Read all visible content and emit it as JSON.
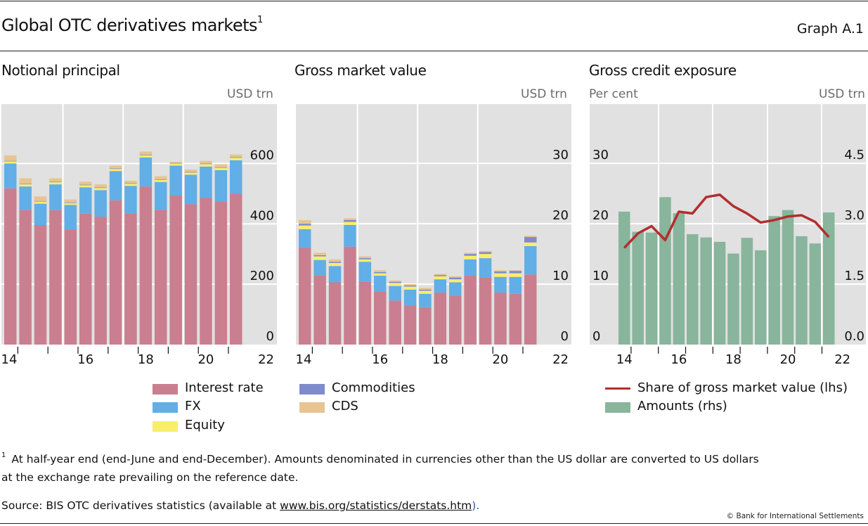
{
  "header": {
    "title": "Global OTC derivatives markets",
    "title_footnote_mark": "1",
    "graph_id": "Graph A.1"
  },
  "colors": {
    "interest_rate": "#c97f8f",
    "fx": "#62aee6",
    "equity": "#f8ee6a",
    "commodities": "#7f8bcc",
    "cds": "#e8c493",
    "amounts": "#88b59c",
    "share_line": "#b22e2e",
    "plot_bg": "#e1e1e1"
  },
  "chart_data": [
    {
      "type": "bar",
      "stacked": true,
      "title": "Notional principal",
      "ylabel": "USD trn",
      "y_axis_side": "right",
      "ylim": [
        0,
        800
      ],
      "yticks": [
        0,
        200,
        400,
        600
      ],
      "xtick_labels": [
        "14",
        "16",
        "18",
        "20",
        "22"
      ],
      "categories": [
        "H1 2014",
        "H2 2014",
        "H1 2015",
        "H2 2015",
        "H1 2016",
        "H2 2016",
        "H1 2017",
        "H2 2017",
        "H1 2018",
        "H2 2018",
        "H1 2019",
        "H2 2019",
        "H1 2020",
        "H2 2020",
        "H1 2021",
        "H2 2021"
      ],
      "series": [
        {
          "name": "Interest rate",
          "values": [
            518,
            446,
            395,
            446,
            382,
            434,
            424,
            478,
            435,
            524,
            447,
            494,
            465,
            486,
            473,
            500
          ]
        },
        {
          "name": "FX",
          "values": [
            82,
            78,
            72,
            85,
            81,
            87,
            88,
            97,
            91,
            96,
            92,
            99,
            98,
            104,
            105,
            111
          ]
        },
        {
          "name": "Equity",
          "values": [
            7,
            7,
            7,
            7,
            6,
            7,
            7,
            7,
            7,
            7,
            7,
            7,
            7,
            8,
            8,
            8
          ]
        },
        {
          "name": "Commodities",
          "values": [
            2,
            2,
            2,
            2,
            2,
            2,
            2,
            2,
            2,
            2,
            2,
            2,
            2,
            2,
            2,
            2
          ]
        },
        {
          "name": "CDS",
          "values": [
            18,
            18,
            15,
            11,
            10,
            10,
            10,
            9,
            8,
            11,
            10,
            4,
            8,
            9,
            10,
            9
          ]
        }
      ],
      "grid": true
    },
    {
      "type": "bar",
      "stacked": true,
      "title": "Gross market value",
      "ylabel": "USD trn",
      "y_axis_side": "right",
      "ylim": [
        0,
        40
      ],
      "yticks": [
        0,
        10,
        20,
        30
      ],
      "xtick_labels": [
        "14",
        "16",
        "18",
        "20",
        "22"
      ],
      "categories": [
        "H1 2014",
        "H2 2014",
        "H1 2015",
        "H2 2015",
        "H1 2016",
        "H2 2016",
        "H1 2017",
        "H2 2017",
        "H1 2018",
        "H2 2018",
        "H1 2019",
        "H2 2019",
        "H1 2020",
        "H2 2020",
        "H1 2021",
        "H2 2021"
      ],
      "series": [
        {
          "name": "Interest rate",
          "values": [
            16.0,
            11.5,
            10.3,
            16.2,
            10.4,
            8.8,
            7.3,
            6.4,
            6.2,
            8.6,
            8.1,
            11.5,
            11.1,
            8.6,
            8.4,
            11.6
          ]
        },
        {
          "name": "FX",
          "values": [
            3.1,
            2.5,
            2.7,
            3.6,
            3.3,
            2.6,
            2.4,
            2.7,
            2.2,
            2.2,
            2.2,
            2.6,
            3.2,
            2.6,
            2.8,
            4.7
          ]
        },
        {
          "name": "Equity",
          "values": [
            0.6,
            0.6,
            0.5,
            0.5,
            0.4,
            0.4,
            0.5,
            0.5,
            0.5,
            0.5,
            0.5,
            0.6,
            0.7,
            0.6,
            0.6,
            0.6
          ]
        },
        {
          "name": "Commodities",
          "values": [
            0.3,
            0.2,
            0.2,
            0.3,
            0.2,
            0.2,
            0.2,
            0.2,
            0.2,
            0.2,
            0.3,
            0.3,
            0.3,
            0.3,
            0.4,
            0.9
          ]
        },
        {
          "name": "CDS",
          "values": [
            0.6,
            0.4,
            0.4,
            0.3,
            0.3,
            0.3,
            0.2,
            0.2,
            0.3,
            0.2,
            0.2,
            0.2,
            0.2,
            0.2,
            0.1,
            0.2
          ]
        }
      ],
      "grid": true
    },
    {
      "type": "bar+line",
      "title": "Gross credit exposure",
      "ylabel_left": "Per cent",
      "ylabel_right": "USD trn",
      "ylim_left": [
        0,
        40
      ],
      "ylim_right": [
        0,
        6
      ],
      "yticks_left": [
        0,
        10,
        20,
        30
      ],
      "yticks_right": [
        "0.0",
        "1.5",
        "3.0",
        "4.5"
      ],
      "xtick_labels": [
        "14",
        "16",
        "18",
        "20",
        "22"
      ],
      "categories": [
        "H1 2014",
        "H2 2014",
        "H1 2015",
        "H2 2015",
        "H1 2016",
        "H2 2016",
        "H1 2017",
        "H2 2017",
        "H1 2018",
        "H2 2018",
        "H1 2019",
        "H2 2019",
        "H1 2020",
        "H2 2020",
        "H1 2021",
        "H2 2021"
      ],
      "series": [
        {
          "name": "Share of gross market value (lhs)",
          "axis": "left",
          "kind": "line",
          "values": [
            16.0,
            18.4,
            19.6,
            17.3,
            22.0,
            21.7,
            24.4,
            24.8,
            22.9,
            21.7,
            20.2,
            20.6,
            21.2,
            21.4,
            20.3,
            17.8
          ]
        },
        {
          "name": "Amounts (rhs)",
          "axis": "right",
          "kind": "bar",
          "values": [
            3.3,
            2.8,
            2.78,
            3.66,
            3.26,
            2.74,
            2.66,
            2.55,
            2.26,
            2.65,
            2.34,
            3.19,
            3.34,
            2.69,
            2.51,
            3.28
          ]
        }
      ],
      "grid": true
    }
  ],
  "legend_left": [
    {
      "key": "interest_rate",
      "label": "Interest rate"
    },
    {
      "key": "fx",
      "label": "FX"
    },
    {
      "key": "equity",
      "label": "Equity"
    },
    {
      "key": "commodities",
      "label": "Commodities"
    },
    {
      "key": "cds",
      "label": "CDS"
    }
  ],
  "legend_right": [
    {
      "key": "share_line",
      "label": "Share of gross market value (lhs)"
    },
    {
      "key": "amounts",
      "label": "Amounts (rhs)"
    }
  ],
  "footnote": {
    "mark": "1",
    "text_line1": "At half-year end (end-June and end-December). Amounts denominated in currencies other than the US dollar are converted to US dollars",
    "text_line2": "at the exchange rate prevailing on the reference date."
  },
  "source": {
    "prefix": "Source: BIS OTC derivatives statistics (available at ",
    "link_text": "www.bis.org/statistics/derstats.htm",
    "suffix": ")."
  },
  "copyright": "© Bank for International Settlements"
}
